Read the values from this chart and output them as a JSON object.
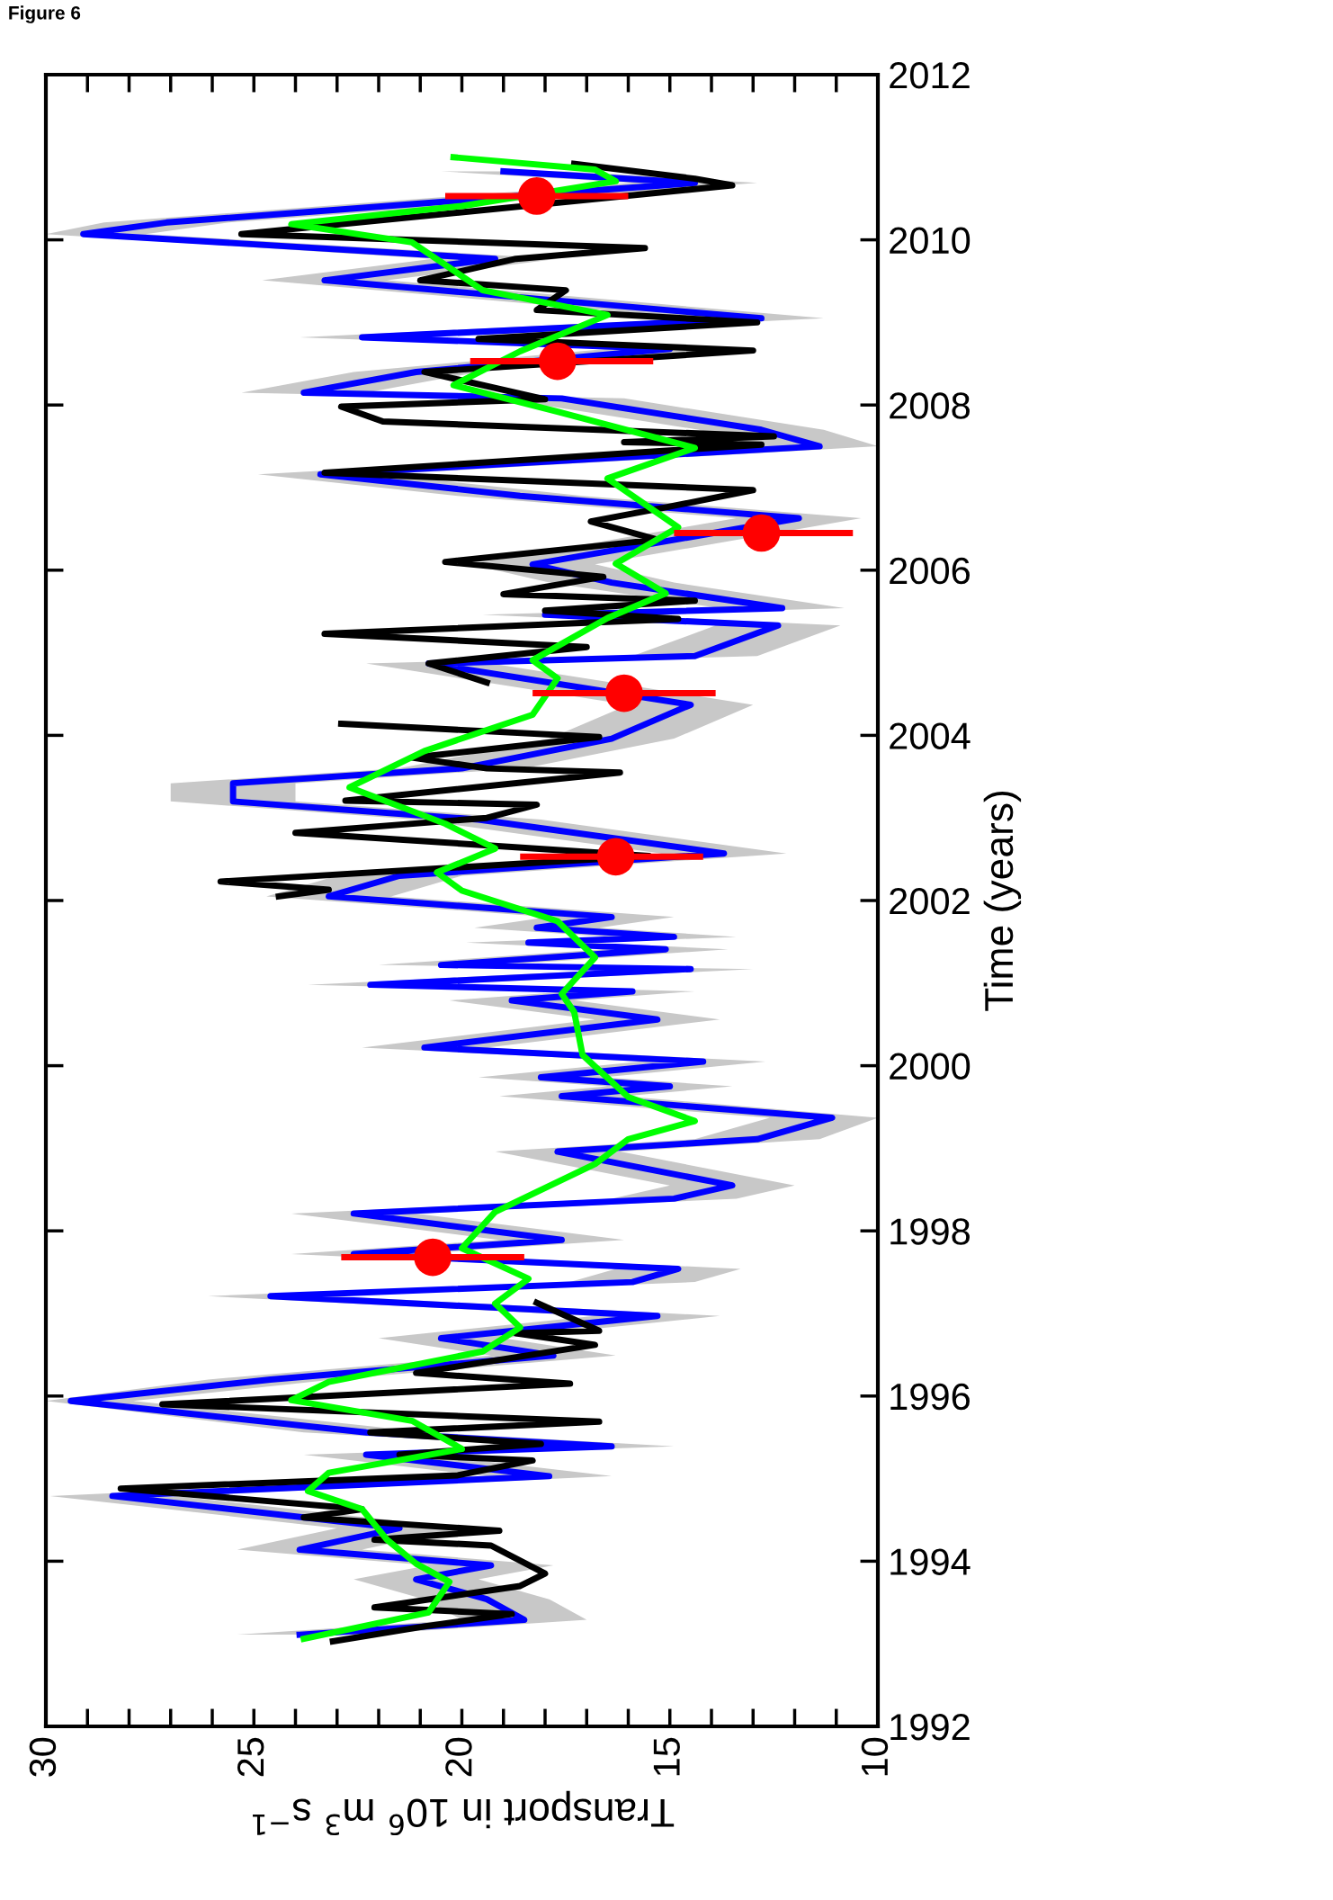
{
  "chart_data": {
    "type": "line",
    "orientation": "horizontal",
    "ylabel": "Time (years)",
    "xlabel": "Transport in 10$^{6}$ m$^{3}$ s$^{−1}$",
    "annotations": [
      "Figure 6"
    ],
    "ylim": [
      1992,
      2012
    ],
    "yticks": [
      1992,
      1994,
      1996,
      1998,
      2000,
      2002,
      2004,
      2006,
      2008,
      2010,
      2012
    ],
    "xlim": [
      30,
      10
    ],
    "xticks": [
      10,
      15,
      20,
      25,
      30
    ],
    "series": [
      {
        "type": "line",
        "color": "#0000ff",
        "x": [
          1993.11,
          1993.29,
          1993.54,
          1993.78,
          1993.95,
          1994.14,
          1994.4,
          1994.79,
          1995.03,
          1995.29,
          1995.39,
          1995.56,
          1995.94,
          1996.2,
          1996.49,
          1996.7,
          1996.97,
          1997.21,
          1997.38,
          1997.54,
          1997.72,
          1997.89,
          1998.21,
          1998.39,
          1998.55,
          1998.96,
          1999.11,
          1999.37,
          1999.63,
          1999.75,
          1999.86,
          2000.05,
          2000.22,
          2000.56,
          2000.79,
          2000.9,
          2000.98,
          2001.17,
          2001.22,
          2001.41,
          2001.49,
          2001.56,
          2001.67,
          2001.8,
          2002.05,
          2002.3,
          2002.57,
          2002.98,
          2003.2,
          2003.42,
          2003.6,
          2003.96,
          2004.37,
          2004.87,
          2004.96,
          2005.33,
          2005.46,
          2005.54,
          2005.85,
          2006.07,
          2006.63,
          2006.9,
          2007.16,
          2007.5,
          2007.7,
          2008.08,
          2008.15,
          2008.4,
          2008.68,
          2008.82,
          2009.05,
          2009.51,
          2009.77,
          2010.07,
          2010.21,
          2010.69,
          2010.83
        ],
        "values": [
          23.9,
          18.5,
          19.4,
          21.1,
          19.3,
          23.9,
          21.5,
          28.4,
          17.9,
          22.3,
          16.4,
          22.3,
          29.4,
          24.6,
          17.8,
          20.5,
          15.3,
          24.6,
          15.9,
          14.8,
          22.6,
          17.6,
          22.6,
          14.9,
          13.5,
          17.7,
          12.9,
          11.1,
          17.6,
          15.0,
          18.1,
          14.2,
          20.9,
          15.3,
          18.8,
          15.9,
          22.2,
          14.5,
          20.5,
          15.1,
          18.4,
          14.9,
          18.2,
          16.4,
          23.2,
          21.5,
          13.7,
          19.6,
          25.5,
          25.5,
          20.0,
          16.4,
          14.5,
          20.8,
          14.4,
          12.4,
          18.0,
          12.3,
          16.4,
          18.3,
          11.9,
          18.6,
          23.4,
          11.4,
          12.8,
          17.6,
          23.8,
          21.1,
          15.0,
          22.4,
          12.8,
          23.3,
          19.2,
          29.1,
          27.1,
          14.4,
          19.0
        ],
        "lower": [
          22.4,
          17.0,
          17.9,
          19.6,
          17.8,
          22.4,
          20.0,
          26.9,
          16.4,
          20.8,
          14.9,
          20.8,
          27.9,
          23.1,
          16.3,
          19.0,
          13.8,
          23.1,
          14.4,
          13.3,
          21.1,
          16.1,
          21.1,
          13.4,
          12.0,
          16.2,
          11.4,
          10.0,
          16.1,
          13.5,
          16.6,
          12.7,
          19.4,
          13.8,
          17.3,
          14.4,
          20.7,
          13.0,
          19.0,
          13.6,
          16.9,
          13.4,
          16.7,
          14.9,
          21.7,
          20.0,
          12.2,
          18.1,
          24.0,
          24.0,
          18.5,
          14.9,
          13.0,
          19.3,
          12.9,
          10.9,
          16.5,
          10.8,
          14.9,
          16.8,
          10.4,
          17.1,
          21.9,
          10.0,
          11.3,
          16.1,
          22.3,
          19.6,
          13.5,
          20.9,
          11.3,
          21.8,
          17.7,
          27.6,
          25.6,
          12.9,
          17.5
        ],
        "upper": [
          25.4,
          20.0,
          20.9,
          22.6,
          20.8,
          25.4,
          23.0,
          29.9,
          19.4,
          23.8,
          17.9,
          23.8,
          30.0,
          26.1,
          19.3,
          22.0,
          16.8,
          26.1,
          17.4,
          16.3,
          24.1,
          19.1,
          24.1,
          16.4,
          15.0,
          19.2,
          14.4,
          12.6,
          19.1,
          16.5,
          19.6,
          15.7,
          22.4,
          16.8,
          20.3,
          17.4,
          23.7,
          16.0,
          22.0,
          16.6,
          19.9,
          16.4,
          19.7,
          17.9,
          24.7,
          23.0,
          15.2,
          21.1,
          27.0,
          27.0,
          21.5,
          17.9,
          16.0,
          22.3,
          15.9,
          13.9,
          19.5,
          13.8,
          17.9,
          19.8,
          13.4,
          20.1,
          24.9,
          12.9,
          14.3,
          19.1,
          25.3,
          22.6,
          16.5,
          23.9,
          14.3,
          24.8,
          20.7,
          30.0,
          28.6,
          15.9,
          20.5
        ]
      },
      {
        "color": "#000000",
        "x": [
          1993.03,
          1993.21,
          1993.36,
          1993.44,
          1993.7,
          1993.85,
          1994.19,
          1994.26,
          1994.37,
          1994.53,
          1994.63,
          1994.88,
          1995.04,
          1995.22,
          1995.29,
          1995.42,
          1995.56,
          1995.69,
          1995.9,
          1996.15,
          1996.28,
          1996.62,
          1996.76,
          1996.79,
          1997.13,
          1999.5,
          2002.05,
          2002.13,
          2002.23,
          2002.54,
          2002.82,
          2003.0,
          2003.16,
          2003.21,
          2003.55,
          2003.6,
          2003.73,
          2003.98,
          2004.14,
          2004.45,
          2004.64,
          2004.87,
          2005.07,
          2005.23,
          2005.41,
          2005.51,
          2005.63,
          2005.71,
          2005.92,
          2006.1,
          2006.37,
          2006.59,
          2006.75,
          2006.97,
          2007.18,
          2007.52,
          2007.55,
          2007.62,
          2007.8,
          2007.98,
          2008.07,
          2008.4,
          2008.66,
          2008.8,
          2009.0,
          2009.15,
          2009.39,
          2009.51,
          2009.77,
          2009.9,
          2010.07,
          2010.66,
          2010.74,
          2010.92
        ],
        "values": [
          23.1,
          20.9,
          18.8,
          22.1,
          18.6,
          18.0,
          19.3,
          22.1,
          19.1,
          23.8,
          22.4,
          28.2,
          20.1,
          18.3,
          21.5,
          18.1,
          22.2,
          16.7,
          27.2,
          17.4,
          21.1,
          16.8,
          18.7,
          16.7,
          18.2,
          null,
          24.4,
          23.2,
          25.8,
          15.5,
          24.0,
          19.4,
          18.2,
          22.8,
          16.2,
          19.4,
          21.2,
          16.7,
          22.9,
          null,
          19.4,
          20.8,
          17.0,
          23.3,
          14.8,
          18.0,
          14.4,
          19.0,
          16.6,
          20.4,
          15.3,
          16.9,
          15.2,
          13.0,
          23.3,
          12.8,
          16.1,
          12.5,
          21.9,
          22.9,
          18.0,
          20.9,
          13.0,
          19.6,
          12.9,
          18.2,
          17.5,
          21.0,
          18.7,
          15.6,
          25.3,
          13.5,
          14.4,
          17.3
        ]
      },
      {
        "color": "#00ff00",
        "x": [
          1993.06,
          1993.38,
          1993.75,
          1993.97,
          1994.26,
          1994.63,
          1994.85,
          1995.07,
          1995.36,
          1995.7,
          1995.95,
          1996.17,
          1996.54,
          1996.83,
          1997.12,
          1997.42,
          1997.79,
          1998.23,
          1998.81,
          1999.11,
          1999.33,
          1999.62,
          2000.13,
          2000.65,
          2000.87,
          2001.31,
          2001.75,
          2002.12,
          2002.34,
          2002.63,
          2002.93,
          2003.37,
          2003.81,
          2004.25,
          2004.69,
          2004.91,
          2005.42,
          2005.72,
          2006.08,
          2006.52,
          2007.11,
          2007.48,
          2007.92,
          2008.24,
          2008.65,
          2009.09,
          2009.39,
          2009.97,
          2010.19,
          2010.41,
          2010.71,
          2010.85,
          2011.0
        ],
        "values": [
          23.8,
          20.8,
          20.3,
          21.1,
          21.8,
          22.4,
          23.7,
          23.2,
          20.0,
          21.2,
          24.1,
          23.2,
          19.5,
          18.6,
          19.2,
          18.4,
          20.0,
          19.2,
          16.8,
          16.0,
          14.4,
          16.0,
          17.1,
          17.3,
          17.6,
          16.8,
          17.7,
          20.0,
          20.6,
          19.2,
          20.4,
          22.7,
          20.9,
          18.3,
          17.7,
          18.3,
          16.5,
          15.1,
          16.3,
          14.8,
          16.5,
          14.4,
          17.7,
          20.2,
          18.6,
          16.5,
          19.5,
          21.2,
          24.1,
          20.0,
          16.3,
          16.8,
          20.2
        ]
      },
      {
        "type": "scatter",
        "color": "#ff0000",
        "marker": "circle",
        "x": [
          1997.68,
          2002.53,
          2004.51,
          2006.45,
          2008.53,
          2010.53
        ],
        "values": [
          20.7,
          16.3,
          16.1,
          12.8,
          17.7,
          18.2
        ],
        "errors": [
          [
            18.5,
            22.9
          ],
          [
            14.2,
            18.6
          ],
          [
            13.9,
            18.3
          ],
          [
            10.6,
            14.9
          ],
          [
            15.4,
            19.8
          ],
          [
            16.0,
            20.4
          ]
        ]
      }
    ]
  }
}
